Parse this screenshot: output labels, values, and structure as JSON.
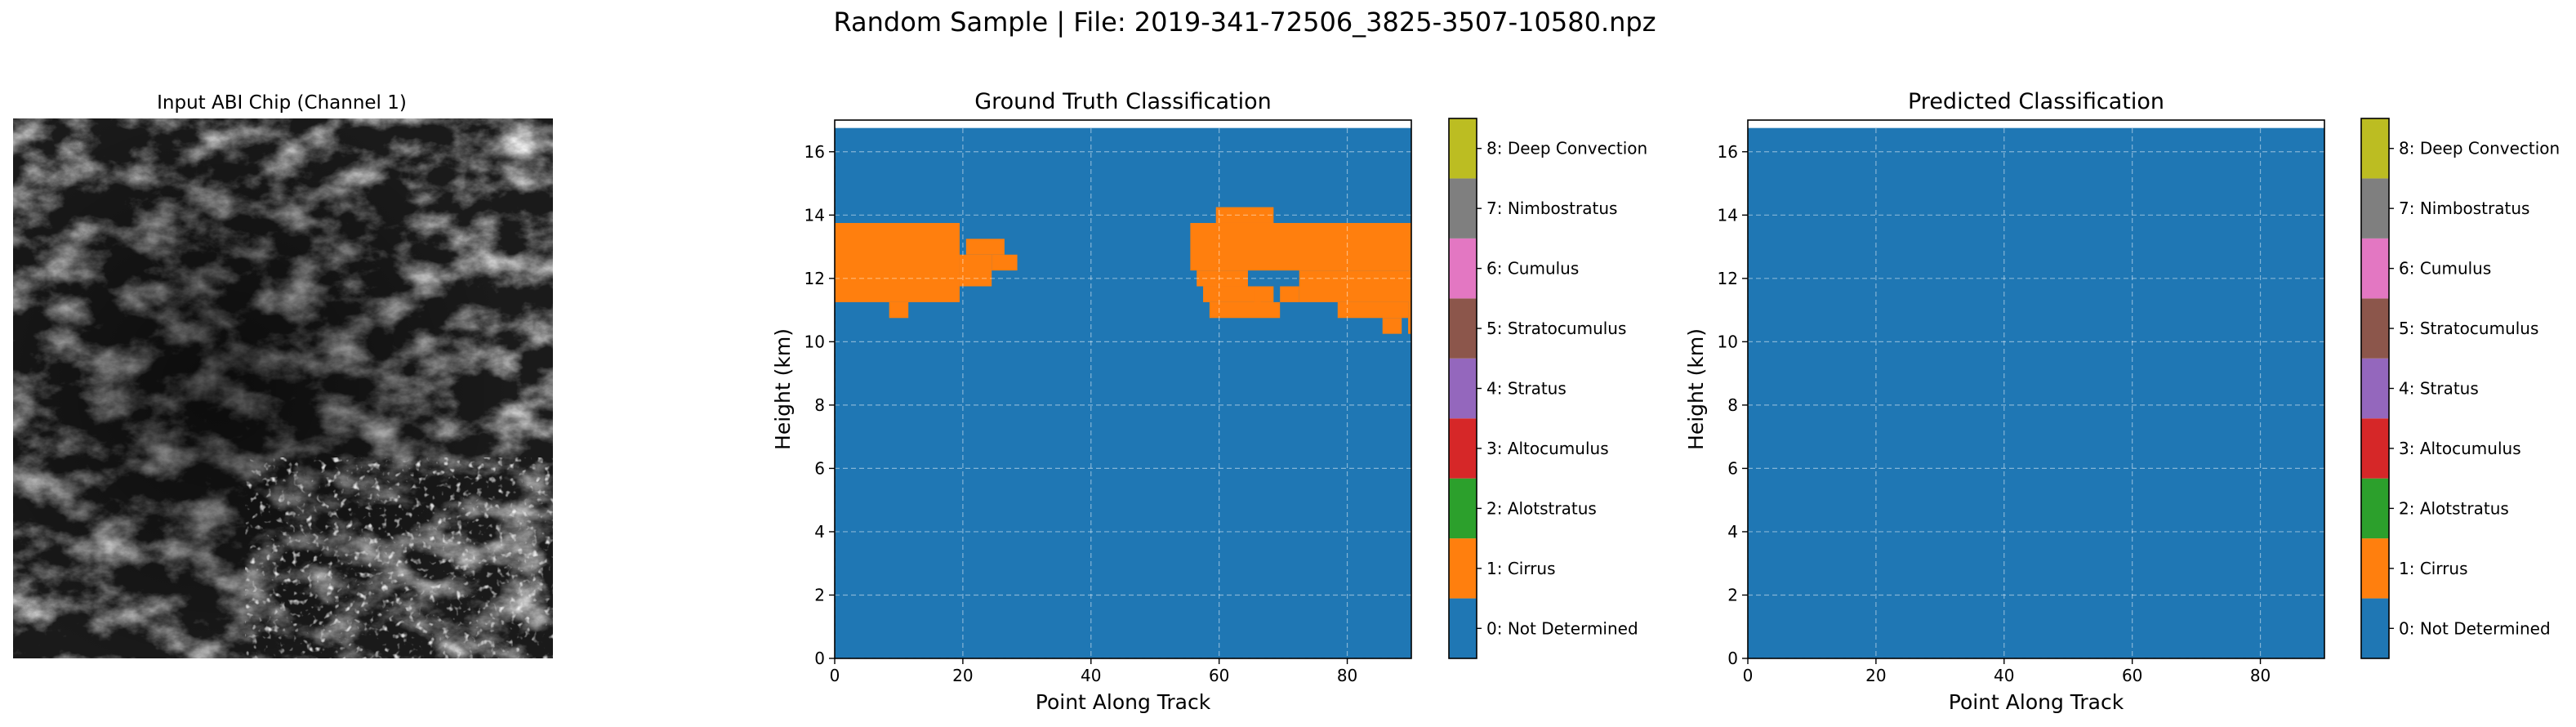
{
  "suptitle": "Random Sample | File: 2019-341-72506_3825-3507-10580.npz",
  "class_labels": [
    "0: Not Determined",
    "1: Cirrus",
    "2: Alotstratus",
    "3: Altocumulus",
    "4: Stratus",
    "5: Stratocumulus",
    "6: Cumulus",
    "7: Nimbostratus",
    "8: Deep Convection"
  ],
  "class_colors": [
    "#1f77b4",
    "#ff7f0e",
    "#2ca02c",
    "#d62728",
    "#9467bd",
    "#8c564b",
    "#e377c2",
    "#7f7f7f",
    "#bcbd22",
    "#17becf"
  ],
  "chart_data": [
    {
      "type": "heatmap",
      "title": "Input ABI Chip (Channel 1)",
      "colormap": "gray",
      "axes_visible": false,
      "description_values": "grayscale satellite image chip"
    },
    {
      "type": "heatmap",
      "title": "Ground Truth Classification",
      "xlabel": "Point Along Track",
      "ylabel": "Height (km)",
      "xlim": [
        0,
        90
      ],
      "ylim": [
        0,
        17
      ],
      "xticks": [
        0,
        20,
        40,
        60,
        80
      ],
      "yticks": [
        0,
        2,
        4,
        6,
        8,
        10,
        12,
        14,
        16
      ],
      "grid": true,
      "data_top": 16.75,
      "background_class": 0,
      "regions": [
        {
          "class": 1,
          "x0": 0,
          "x1": 19.5,
          "y0": 11.25,
          "y1": 13.75
        },
        {
          "class": 1,
          "x0": 19.5,
          "x1": 24.5,
          "y0": 11.75,
          "y1": 12.75
        },
        {
          "class": 1,
          "x0": 24.5,
          "x1": 28.5,
          "y0": 12.25,
          "y1": 12.75
        },
        {
          "class": 1,
          "x0": 20.5,
          "x1": 26.5,
          "y0": 12.75,
          "y1": 13.25
        },
        {
          "class": 1,
          "x0": 8.5,
          "x1": 11.5,
          "y0": 10.75,
          "y1": 11.25
        },
        {
          "class": 1,
          "x0": 55.5,
          "x1": 90,
          "y0": 12.25,
          "y1": 13.75
        },
        {
          "class": 1,
          "x0": 56.5,
          "x1": 64.5,
          "y0": 11.75,
          "y1": 12.25
        },
        {
          "class": 1,
          "x0": 72.5,
          "x1": 90,
          "y0": 11.25,
          "y1": 12.25
        },
        {
          "class": 1,
          "x0": 78.5,
          "x1": 89.5,
          "y0": 10.75,
          "y1": 11.25
        },
        {
          "class": 1,
          "x0": 57.5,
          "x1": 66.5,
          "y0": 11.25,
          "y1": 11.75
        },
        {
          "class": 1,
          "x0": 58.5,
          "x1": 69.5,
          "y0": 10.75,
          "y1": 11.25
        },
        {
          "class": 1,
          "x0": 65.5,
          "x1": 68.5,
          "y0": 11.25,
          "y1": 11.75
        },
        {
          "class": 1,
          "x0": 69.5,
          "x1": 72.5,
          "y0": 11.25,
          "y1": 11.75
        },
        {
          "class": 1,
          "x0": 59.5,
          "x1": 68.5,
          "y0": 13.75,
          "y1": 14.25
        },
        {
          "class": 1,
          "x0": 85.5,
          "x1": 88.5,
          "y0": 10.25,
          "y1": 10.75
        },
        {
          "class": 1,
          "x0": 89.5,
          "x1": 90,
          "y0": 10.25,
          "y1": 11.25
        }
      ]
    },
    {
      "type": "heatmap",
      "title": "Predicted Classification",
      "xlabel": "Point Along Track",
      "ylabel": "Height (km)",
      "xlim": [
        0,
        90
      ],
      "ylim": [
        0,
        17
      ],
      "xticks": [
        0,
        20,
        40,
        60,
        80
      ],
      "yticks": [
        0,
        2,
        4,
        6,
        8,
        10,
        12,
        14,
        16
      ],
      "grid": true,
      "data_top": 16.75,
      "background_class": 0,
      "regions": []
    }
  ]
}
